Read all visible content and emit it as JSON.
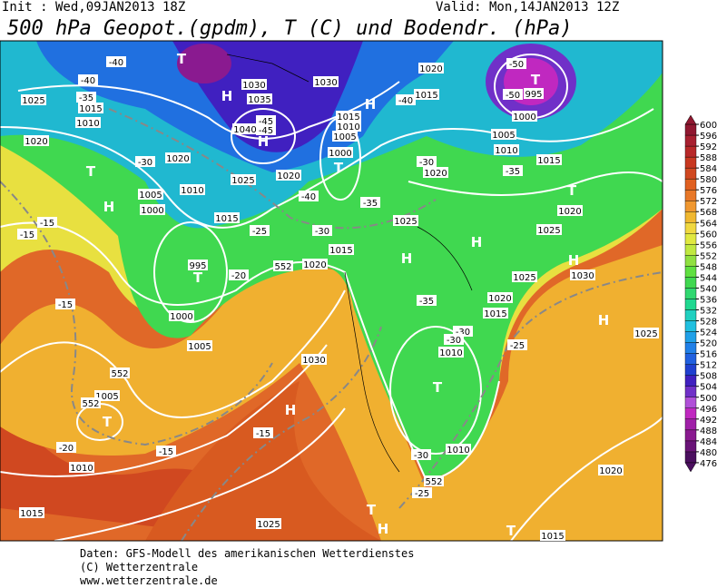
{
  "header": {
    "init": "Init : Wed,09JAN2013 18Z",
    "valid": "Valid: Mon,14JAN2013 12Z",
    "title": "500 hPa Geopot.(gpdm), T (C) und Bodendr. (hPa)"
  },
  "colorbar": {
    "ticks": [
      600,
      596,
      592,
      588,
      584,
      580,
      576,
      572,
      568,
      564,
      560,
      556,
      552,
      548,
      544,
      540,
      536,
      532,
      528,
      524,
      520,
      516,
      512,
      508,
      504,
      500,
      496,
      492,
      488,
      484,
      480,
      476
    ],
    "colors": [
      "#4b0f5f",
      "#6a1478",
      "#8a1a90",
      "#a020a8",
      "#c028c0",
      "#b050d8",
      "#7030c8",
      "#4020c0",
      "#2040d0",
      "#2060e0",
      "#2080e8",
      "#20a0e8",
      "#20c0e0",
      "#20d0c0",
      "#20d890",
      "#30d870",
      "#40d850",
      "#60e040",
      "#90e040",
      "#c0e840",
      "#e0e840",
      "#f0d840",
      "#f0b830",
      "#f09830",
      "#e87828",
      "#e06020",
      "#d04820",
      "#c83820",
      "#b82828",
      "#a82030",
      "#901830"
    ]
  },
  "map_labels": [
    "T",
    "-40",
    "-40",
    "H",
    "1030",
    "1035",
    "1030",
    "1020",
    "-50",
    "T",
    "995",
    "-50",
    "1000",
    "1015",
    "-40",
    "H",
    "1025",
    "-35",
    "1015",
    "1010",
    "1020",
    "-45",
    "-45",
    "H",
    "1040",
    "1015",
    "1010",
    "1005",
    "1000",
    "T",
    "1005",
    "1010",
    "1015",
    "-35",
    "T",
    "-30",
    "1020",
    "-30",
    "1020",
    "1025",
    "1020",
    "T",
    "1005",
    "1010",
    "-40",
    "-35",
    "H",
    "1000",
    "-15",
    "-15",
    "1015",
    "-25",
    "-30",
    "1025",
    "1020",
    "1025",
    "H",
    "995",
    "T",
    "-20",
    "1020",
    "H",
    "1015",
    "552",
    "H",
    "1030",
    "1025",
    "-35",
    "1020",
    "1015",
    "-15",
    "1000",
    "-30",
    "-30",
    "1005",
    "-25",
    "1025",
    "H",
    "1030",
    "1010",
    "552",
    "T",
    "1005",
    "552",
    "T",
    "H",
    "-15",
    "-20",
    "-15",
    "-30",
    "1010",
    "1010",
    "1020",
    "552",
    "-25",
    "T",
    "1015",
    "1025",
    "H",
    "T",
    "1015"
  ],
  "footer": [
    "Daten: GFS-Modell des amerikanischen Wetterdienstes",
    "(C) Wetterzentrale",
    "www.wetterzentrale.de"
  ]
}
